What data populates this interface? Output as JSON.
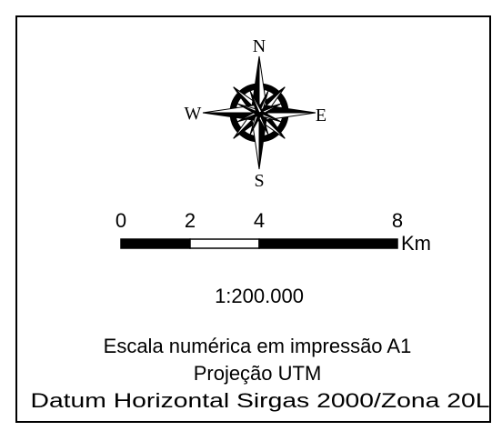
{
  "compass": {
    "north": "N",
    "south": "S",
    "east": "E",
    "west": "W"
  },
  "scale_bar": {
    "ticks": [
      0,
      2,
      4,
      8
    ],
    "unit": "Km"
  },
  "scale_text": "1:200.000",
  "notes": [
    "Escala numérica em impressão A1",
    "Projeção UTM",
    "Datum Horizontal Sirgas 2000/Zona 20L"
  ]
}
